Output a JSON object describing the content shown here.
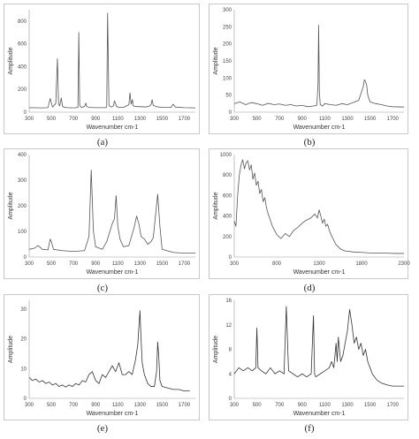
{
  "chart_data": [
    {
      "id": "a",
      "type": "line",
      "caption": "(a)",
      "xlabel": "Wavenumber cm-1",
      "ylabel": "Amplitude",
      "xlim": [
        300,
        1800
      ],
      "ylim": [
        0,
        900
      ],
      "xticks": [
        300,
        500,
        700,
        900,
        1100,
        1300,
        1500,
        1700
      ],
      "yticks": [
        0,
        200,
        400,
        600,
        800
      ],
      "series": [
        {
          "color": "#555555",
          "x": [
            300,
            420,
            470,
            490,
            510,
            540,
            555,
            565,
            575,
            590,
            600,
            610,
            640,
            700,
            740,
            748,
            756,
            770,
            800,
            812,
            820,
            840,
            900,
            990,
            1000,
            1008,
            1020,
            1040,
            1060,
            1070,
            1090,
            1120,
            1150,
            1180,
            1200,
            1210,
            1220,
            1232,
            1240,
            1260,
            1300,
            1320,
            1340,
            1380,
            1400,
            1410,
            1420,
            1450,
            1500,
            1580,
            1600,
            1620,
            1700,
            1800
          ],
          "y": [
            40,
            38,
            40,
            120,
            45,
            75,
            470,
            75,
            55,
            125,
            55,
            45,
            40,
            38,
            42,
            700,
            60,
            42,
            50,
            80,
            50,
            42,
            40,
            40,
            45,
            870,
            60,
            45,
            55,
            100,
            48,
            42,
            42,
            55,
            65,
            170,
            70,
            110,
            55,
            50,
            48,
            48,
            45,
            50,
            65,
            110,
            60,
            48,
            42,
            42,
            70,
            45,
            40,
            38
          ]
        }
      ]
    },
    {
      "id": "b",
      "type": "line",
      "caption": "(b)",
      "xlabel": "Wavenumber cm-1",
      "ylabel": "Amplitude",
      "xlim": [
        300,
        1800
      ],
      "ylim": [
        0,
        300
      ],
      "xticks": [
        300,
        500,
        700,
        900,
        1100,
        1300,
        1500,
        1700
      ],
      "yticks": [
        0,
        50,
        100,
        150,
        200,
        250,
        300
      ],
      "series": [
        {
          "color": "#555555",
          "x": [
            300,
            350,
            400,
            450,
            500,
            550,
            600,
            650,
            700,
            750,
            800,
            850,
            900,
            950,
            1000,
            1030,
            1040,
            1046,
            1052,
            1060,
            1080,
            1100,
            1150,
            1200,
            1250,
            1300,
            1350,
            1400,
            1420,
            1440,
            1450,
            1460,
            1470,
            1480,
            1500,
            1550,
            1600,
            1650,
            1700,
            1800
          ],
          "y": [
            25,
            30,
            22,
            28,
            25,
            20,
            26,
            22,
            24,
            20,
            22,
            18,
            20,
            16,
            18,
            20,
            80,
            255,
            60,
            22,
            18,
            25,
            22,
            20,
            25,
            22,
            28,
            35,
            55,
            75,
            95,
            90,
            80,
            50,
            30,
            25,
            22,
            18,
            16,
            15
          ]
        }
      ]
    },
    {
      "id": "c",
      "type": "line",
      "caption": "(c)",
      "xlabel": "Wavenumber cm-1",
      "ylabel": "Amplitude",
      "xlim": [
        300,
        1800
      ],
      "ylim": [
        0,
        400
      ],
      "xticks": [
        300,
        500,
        700,
        900,
        1100,
        1300,
        1500,
        1700
      ],
      "yticks": [
        0,
        100,
        200,
        300,
        400
      ],
      "series": [
        {
          "color": "#555555",
          "x": [
            300,
            350,
            380,
            420,
            470,
            490,
            500,
            520,
            600,
            700,
            800,
            840,
            860,
            880,
            900,
            960,
            1000,
            1050,
            1070,
            1085,
            1100,
            1120,
            1150,
            1200,
            1250,
            1270,
            1290,
            1310,
            1340,
            1370,
            1400,
            1420,
            1440,
            1460,
            1480,
            1500,
            1600,
            1700,
            1800
          ],
          "y": [
            30,
            35,
            45,
            30,
            28,
            70,
            60,
            30,
            25,
            22,
            25,
            80,
            340,
            100,
            40,
            30,
            60,
            130,
            150,
            240,
            120,
            70,
            40,
            45,
            120,
            160,
            130,
            80,
            70,
            50,
            60,
            75,
            160,
            245,
            120,
            30,
            18,
            15,
            15
          ]
        }
      ]
    },
    {
      "id": "d",
      "type": "line",
      "caption": "(d)",
      "xlabel": "Wavenumber cm-1",
      "ylabel": "Amplitude",
      "xlim": [
        300,
        2300
      ],
      "ylim": [
        0,
        1000
      ],
      "xticks": [
        300,
        800,
        1300,
        1800,
        2300
      ],
      "yticks": [
        0,
        200,
        400,
        600,
        800,
        1000
      ],
      "series": [
        {
          "color": "#555555",
          "x": [
            300,
            320,
            340,
            360,
            380,
            400,
            420,
            440,
            460,
            480,
            500,
            520,
            540,
            560,
            580,
            600,
            620,
            640,
            660,
            680,
            700,
            750,
            800,
            850,
            900,
            950,
            1000,
            1050,
            1100,
            1150,
            1200,
            1250,
            1280,
            1300,
            1320,
            1340,
            1360,
            1380,
            1400,
            1420,
            1450,
            1500,
            1550,
            1600,
            1700,
            1800,
            1900,
            2000,
            2100,
            2200,
            2300
          ],
          "y": [
            350,
            300,
            600,
            800,
            900,
            950,
            860,
            920,
            940,
            850,
            900,
            760,
            820,
            700,
            740,
            620,
            660,
            540,
            580,
            480,
            420,
            300,
            220,
            180,
            230,
            200,
            260,
            290,
            330,
            360,
            380,
            420,
            380,
            460,
            400,
            330,
            370,
            300,
            320,
            260,
            200,
            120,
            80,
            60,
            50,
            45,
            40,
            40,
            38,
            35,
            35
          ]
        }
      ]
    },
    {
      "id": "e",
      "type": "line",
      "caption": "(e)",
      "xlabel": "Wavenumber cm-1",
      "ylabel": "Amplitude",
      "xlim": [
        300,
        1800
      ],
      "ylim": [
        0,
        33
      ],
      "xticks": [
        300,
        500,
        700,
        900,
        1100,
        1300,
        1500,
        1700
      ],
      "yticks": [
        0,
        10,
        20,
        30
      ],
      "series": [
        {
          "color": "#333333",
          "x": [
            300,
            330,
            360,
            390,
            420,
            450,
            480,
            510,
            540,
            570,
            600,
            630,
            660,
            690,
            720,
            750,
            780,
            810,
            840,
            870,
            900,
            930,
            960,
            990,
            1020,
            1050,
            1080,
            1110,
            1140,
            1170,
            1200,
            1230,
            1260,
            1280,
            1300,
            1310,
            1320,
            1340,
            1370,
            1400,
            1430,
            1450,
            1460,
            1470,
            1480,
            1500,
            1550,
            1600,
            1650,
            1700,
            1750
          ],
          "y": [
            7,
            6,
            6.5,
            5.5,
            6,
            5,
            5.5,
            4.5,
            5,
            4,
            4.5,
            3.8,
            4.5,
            4,
            5,
            4.5,
            6,
            5.5,
            8,
            9,
            6,
            5,
            8,
            7,
            9,
            11,
            9,
            12,
            8,
            8,
            9,
            8,
            13,
            18,
            29.5,
            20,
            12,
            8,
            5,
            4,
            4,
            9,
            19,
            14,
            6,
            4,
            3.5,
            3,
            3,
            2.5,
            2.5
          ]
        }
      ]
    },
    {
      "id": "f",
      "type": "line",
      "caption": "(f)",
      "xlabel": "Wavenumber cm-1",
      "ylabel": "Amplitude",
      "xlim": [
        300,
        1800
      ],
      "ylim": [
        0,
        16
      ],
      "xticks": [
        300,
        500,
        700,
        900,
        1100,
        1300,
        1500,
        1700
      ],
      "yticks": [
        0,
        4,
        8,
        12,
        16
      ],
      "series": [
        {
          "color": "#333333",
          "x": [
            300,
            340,
            380,
            420,
            460,
            490,
            500,
            510,
            540,
            580,
            620,
            660,
            700,
            740,
            760,
            780,
            820,
            860,
            900,
            940,
            980,
            1000,
            1010,
            1020,
            1060,
            1100,
            1140,
            1160,
            1180,
            1200,
            1210,
            1220,
            1240,
            1260,
            1280,
            1300,
            1320,
            1340,
            1360,
            1380,
            1400,
            1420,
            1440,
            1460,
            1480,
            1500,
            1520,
            1560,
            1600,
            1650,
            1700,
            1750,
            1800
          ],
          "y": [
            4,
            5,
            4.5,
            5,
            4.5,
            5,
            11.5,
            5,
            4.5,
            4,
            5,
            4,
            4.5,
            4,
            15,
            4.5,
            4,
            3.5,
            4,
            3.5,
            4,
            13.5,
            4,
            3.5,
            4,
            4.5,
            5,
            6,
            5,
            9,
            6,
            10,
            6,
            7,
            9,
            11,
            14.5,
            12,
            9,
            10,
            8,
            9,
            7,
            8,
            6,
            5,
            4,
            3,
            2.5,
            2.2,
            2,
            2,
            2
          ]
        }
      ]
    }
  ]
}
